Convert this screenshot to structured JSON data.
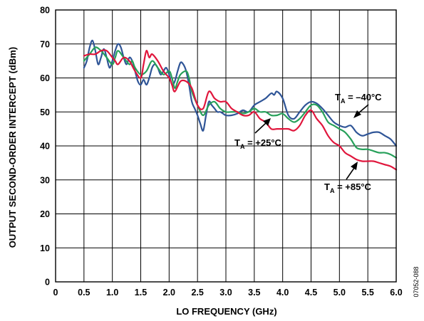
{
  "chart_data": {
    "type": "line",
    "title": "",
    "xlabel": "LO FREQUENCY (GHz)",
    "ylabel": "OUTPUT SECOND-ORDER INTERCEPT (dBm)",
    "xlim": [
      0,
      6.0
    ],
    "ylim": [
      0,
      80
    ],
    "x_ticks": [
      0,
      0.5,
      1.0,
      1.5,
      2.0,
      2.5,
      3.0,
      3.5,
      4.0,
      4.5,
      5.0,
      5.5,
      6.0
    ],
    "x_tick_labels": [
      "0",
      "0.5",
      "1.0",
      "1.5",
      "2.0",
      "2.5",
      "3.0",
      "3.5",
      "4.0",
      "4.5",
      "5.0",
      "5.5",
      "6.0"
    ],
    "y_ticks": [
      0,
      10,
      20,
      30,
      40,
      50,
      60,
      70,
      80
    ],
    "y_tick_labels": [
      "0",
      "10",
      "20",
      "30",
      "40",
      "50",
      "60",
      "70",
      "80"
    ],
    "grid": true,
    "figure_id": "07052-088",
    "series": [
      {
        "name": "TA = −40°C",
        "color": "#2f5597",
        "points": [
          [
            0.5,
            63
          ],
          [
            0.55,
            65
          ],
          [
            0.6,
            69
          ],
          [
            0.65,
            71
          ],
          [
            0.7,
            68
          ],
          [
            0.75,
            64
          ],
          [
            0.8,
            66
          ],
          [
            0.85,
            68.5
          ],
          [
            0.9,
            66
          ],
          [
            0.95,
            63
          ],
          [
            1.0,
            65
          ],
          [
            1.05,
            68
          ],
          [
            1.1,
            70
          ],
          [
            1.15,
            69
          ],
          [
            1.2,
            66
          ],
          [
            1.25,
            64
          ],
          [
            1.3,
            66
          ],
          [
            1.35,
            65
          ],
          [
            1.4,
            62
          ],
          [
            1.45,
            59
          ],
          [
            1.5,
            58
          ],
          [
            1.55,
            59.5
          ],
          [
            1.6,
            58
          ],
          [
            1.65,
            60
          ],
          [
            1.7,
            63
          ],
          [
            1.75,
            64
          ],
          [
            1.8,
            63
          ],
          [
            1.85,
            61
          ],
          [
            1.9,
            62
          ],
          [
            1.95,
            63
          ],
          [
            2.0,
            61
          ],
          [
            2.05,
            58
          ],
          [
            2.1,
            59
          ],
          [
            2.15,
            62
          ],
          [
            2.2,
            64.5
          ],
          [
            2.25,
            64
          ],
          [
            2.3,
            62
          ],
          [
            2.35,
            58
          ],
          [
            2.4,
            53
          ],
          [
            2.45,
            51
          ],
          [
            2.5,
            49
          ],
          [
            2.55,
            46.5
          ],
          [
            2.6,
            44.5
          ],
          [
            2.65,
            49
          ],
          [
            2.7,
            53
          ],
          [
            2.75,
            52
          ],
          [
            2.8,
            51
          ],
          [
            2.85,
            50
          ],
          [
            2.9,
            50
          ],
          [
            2.95,
            49.5
          ],
          [
            3.0,
            49
          ],
          [
            3.1,
            49
          ],
          [
            3.2,
            49.5
          ],
          [
            3.3,
            50.5
          ],
          [
            3.4,
            50
          ],
          [
            3.5,
            52
          ],
          [
            3.6,
            53
          ],
          [
            3.7,
            54
          ],
          [
            3.8,
            55.5
          ],
          [
            3.85,
            55
          ],
          [
            3.9,
            56
          ],
          [
            4.0,
            54
          ],
          [
            4.1,
            49
          ],
          [
            4.2,
            48
          ],
          [
            4.3,
            50
          ],
          [
            4.4,
            52
          ],
          [
            4.5,
            53
          ],
          [
            4.6,
            52.5
          ],
          [
            4.7,
            51
          ],
          [
            4.8,
            49
          ],
          [
            4.9,
            47
          ],
          [
            5.0,
            46
          ],
          [
            5.1,
            45.5
          ],
          [
            5.2,
            46
          ],
          [
            5.3,
            44
          ],
          [
            5.4,
            43
          ],
          [
            5.5,
            43.5
          ],
          [
            5.6,
            44
          ],
          [
            5.7,
            44
          ],
          [
            5.8,
            43
          ],
          [
            5.9,
            42
          ],
          [
            6.0,
            40
          ]
        ]
      },
      {
        "name": "TA = +25°C",
        "color": "#27a05a",
        "points": [
          [
            0.5,
            65
          ],
          [
            0.6,
            67
          ],
          [
            0.7,
            69
          ],
          [
            0.8,
            68
          ],
          [
            0.9,
            66
          ],
          [
            1.0,
            64
          ],
          [
            1.05,
            66
          ],
          [
            1.1,
            68
          ],
          [
            1.2,
            66
          ],
          [
            1.3,
            64
          ],
          [
            1.35,
            65
          ],
          [
            1.4,
            63
          ],
          [
            1.5,
            61
          ],
          [
            1.6,
            62
          ],
          [
            1.7,
            65
          ],
          [
            1.8,
            63
          ],
          [
            1.9,
            61
          ],
          [
            2.0,
            62
          ],
          [
            2.05,
            60
          ],
          [
            2.1,
            57
          ],
          [
            2.15,
            59
          ],
          [
            2.2,
            61
          ],
          [
            2.3,
            62
          ],
          [
            2.35,
            60
          ],
          [
            2.4,
            56
          ],
          [
            2.5,
            52
          ],
          [
            2.6,
            49
          ],
          [
            2.7,
            52
          ],
          [
            2.8,
            53
          ],
          [
            2.9,
            51
          ],
          [
            3.0,
            50
          ],
          [
            3.1,
            50
          ],
          [
            3.2,
            50
          ],
          [
            3.3,
            49.5
          ],
          [
            3.4,
            50
          ],
          [
            3.5,
            51
          ],
          [
            3.6,
            50
          ],
          [
            3.7,
            50
          ],
          [
            3.8,
            49
          ],
          [
            3.9,
            49
          ],
          [
            4.0,
            49.5
          ],
          [
            4.1,
            48
          ],
          [
            4.2,
            47
          ],
          [
            4.3,
            48
          ],
          [
            4.4,
            50
          ],
          [
            4.5,
            52
          ],
          [
            4.6,
            52
          ],
          [
            4.7,
            50
          ],
          [
            4.8,
            47
          ],
          [
            4.9,
            46
          ],
          [
            5.0,
            45
          ],
          [
            5.1,
            44
          ],
          [
            5.2,
            42
          ],
          [
            5.3,
            39.5
          ],
          [
            5.4,
            39
          ],
          [
            5.5,
            39
          ],
          [
            5.6,
            38.5
          ],
          [
            5.7,
            38
          ],
          [
            5.8,
            38
          ],
          [
            5.9,
            37.5
          ],
          [
            6.0,
            36.5
          ]
        ]
      },
      {
        "name": "TA = +85°C",
        "color": "#e0163c",
        "points": [
          [
            0.5,
            66.5
          ],
          [
            0.6,
            67
          ],
          [
            0.7,
            67
          ],
          [
            0.8,
            68
          ],
          [
            0.9,
            68
          ],
          [
            1.0,
            66
          ],
          [
            1.05,
            65
          ],
          [
            1.1,
            64
          ],
          [
            1.2,
            66
          ],
          [
            1.3,
            65
          ],
          [
            1.4,
            62
          ],
          [
            1.5,
            60
          ],
          [
            1.55,
            64
          ],
          [
            1.6,
            68
          ],
          [
            1.65,
            66
          ],
          [
            1.7,
            67
          ],
          [
            1.8,
            65
          ],
          [
            1.9,
            62
          ],
          [
            2.0,
            60
          ],
          [
            2.05,
            58
          ],
          [
            2.1,
            56
          ],
          [
            2.2,
            59
          ],
          [
            2.3,
            59
          ],
          [
            2.4,
            57
          ],
          [
            2.5,
            52
          ],
          [
            2.6,
            51
          ],
          [
            2.7,
            56
          ],
          [
            2.8,
            54
          ],
          [
            2.9,
            53
          ],
          [
            3.0,
            53
          ],
          [
            3.1,
            51
          ],
          [
            3.2,
            50
          ],
          [
            3.3,
            49
          ],
          [
            3.4,
            49
          ],
          [
            3.5,
            50
          ],
          [
            3.6,
            48
          ],
          [
            3.7,
            47
          ],
          [
            3.8,
            45
          ],
          [
            3.9,
            45
          ],
          [
            4.0,
            45
          ],
          [
            4.1,
            45
          ],
          [
            4.2,
            44.5
          ],
          [
            4.3,
            46
          ],
          [
            4.4,
            49
          ],
          [
            4.5,
            50.5
          ],
          [
            4.6,
            48
          ],
          [
            4.7,
            46
          ],
          [
            4.8,
            43
          ],
          [
            4.9,
            41
          ],
          [
            5.0,
            40
          ],
          [
            5.1,
            38
          ],
          [
            5.2,
            37
          ],
          [
            5.3,
            36
          ],
          [
            5.4,
            35.5
          ],
          [
            5.5,
            35.5
          ],
          [
            5.6,
            35.5
          ],
          [
            5.7,
            35
          ],
          [
            5.8,
            34.5
          ],
          [
            5.9,
            34
          ],
          [
            6.0,
            33
          ]
        ]
      }
    ],
    "annotations": [
      {
        "main": "T",
        "sub": "A",
        "rest": " = –40°C"
      },
      {
        "main": "T",
        "sub": "A",
        "rest": " = +25°C"
      },
      {
        "main": "T",
        "sub": "A",
        "rest": " = +85°C"
      }
    ]
  }
}
